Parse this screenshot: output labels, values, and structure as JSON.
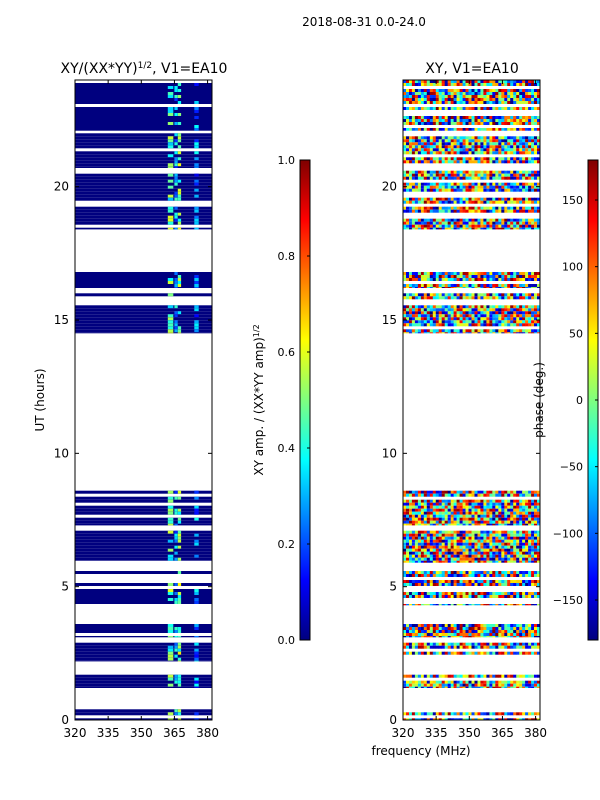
{
  "figure": {
    "suptitle": "2018-08-31 0.0-24.0",
    "xlabel": "frequency (MHz)"
  },
  "colors": {
    "jet": [
      "#00007f",
      "#0000ff",
      "#007fff",
      "#00ffff",
      "#7fff7f",
      "#ffff00",
      "#ff7f00",
      "#ff0000",
      "#7f0000"
    ]
  },
  "chart_data": [
    {
      "type": "heatmap",
      "title_main": "XY/(XX*YY)",
      "title_sup": "1/2",
      "title_rest": ", V1=EA10",
      "ylabel": "UT (hours)",
      "xlim": [
        320,
        382
      ],
      "ylim": [
        0,
        24
      ],
      "x_ticks": [
        320,
        335,
        350,
        365,
        380
      ],
      "y_ticks": [
        0,
        5,
        10,
        15,
        20
      ],
      "colorbar": {
        "label_main": "XY amp. / (XX*YY amp)",
        "label_sup": "1/2",
        "range": [
          0,
          1
        ],
        "ticks": [
          "0.0",
          "0.2",
          "0.4",
          "0.6",
          "0.8",
          "1.0"
        ],
        "tick_values": [
          0,
          0.2,
          0.4,
          0.6,
          0.8,
          1.0
        ]
      },
      "data_blocks_hours": [
        [
          0,
          0.4
        ],
        [
          1.2,
          1.7
        ],
        [
          2.2,
          2.9
        ],
        [
          3.1,
          3.6
        ],
        [
          4.3,
          5.7
        ],
        [
          5.9,
          7.1
        ],
        [
          7.3,
          8.6
        ],
        [
          14.5,
          16.0
        ],
        [
          16.2,
          16.8
        ],
        [
          18.4,
          20.6
        ],
        [
          20.7,
          22.0
        ],
        [
          22.1,
          24.0
        ]
      ],
      "values_description": "mostly near 0; elevated amplitude (~0.3-0.6) in channels ~362-368 MHz"
    },
    {
      "type": "heatmap",
      "title": "XY, V1=EA10",
      "ylabel": "",
      "xlim": [
        320,
        382
      ],
      "ylim": [
        0,
        24
      ],
      "x_ticks": [
        320,
        335,
        350,
        365,
        380
      ],
      "y_ticks": [
        0,
        5,
        10,
        15,
        20
      ],
      "colorbar": {
        "label": "phase (deg.)",
        "range": [
          -180,
          180
        ],
        "ticks": [
          "−150",
          "−100",
          "−50",
          "0",
          "50",
          "100",
          "150"
        ],
        "tick_values": [
          -150,
          -100,
          -50,
          0,
          50,
          100,
          150
        ]
      },
      "data_blocks_hours": [
        [
          0,
          0.4
        ],
        [
          1.2,
          1.7
        ],
        [
          2.2,
          2.9
        ],
        [
          3.1,
          3.6
        ],
        [
          4.3,
          5.7
        ],
        [
          5.9,
          7.1
        ],
        [
          7.3,
          8.6
        ],
        [
          14.5,
          16.0
        ],
        [
          16.2,
          16.8
        ],
        [
          18.4,
          20.6
        ],
        [
          20.7,
          22.0
        ],
        [
          22.1,
          24.0
        ]
      ],
      "values_description": "phase spread across full range -180..180 deg"
    }
  ]
}
